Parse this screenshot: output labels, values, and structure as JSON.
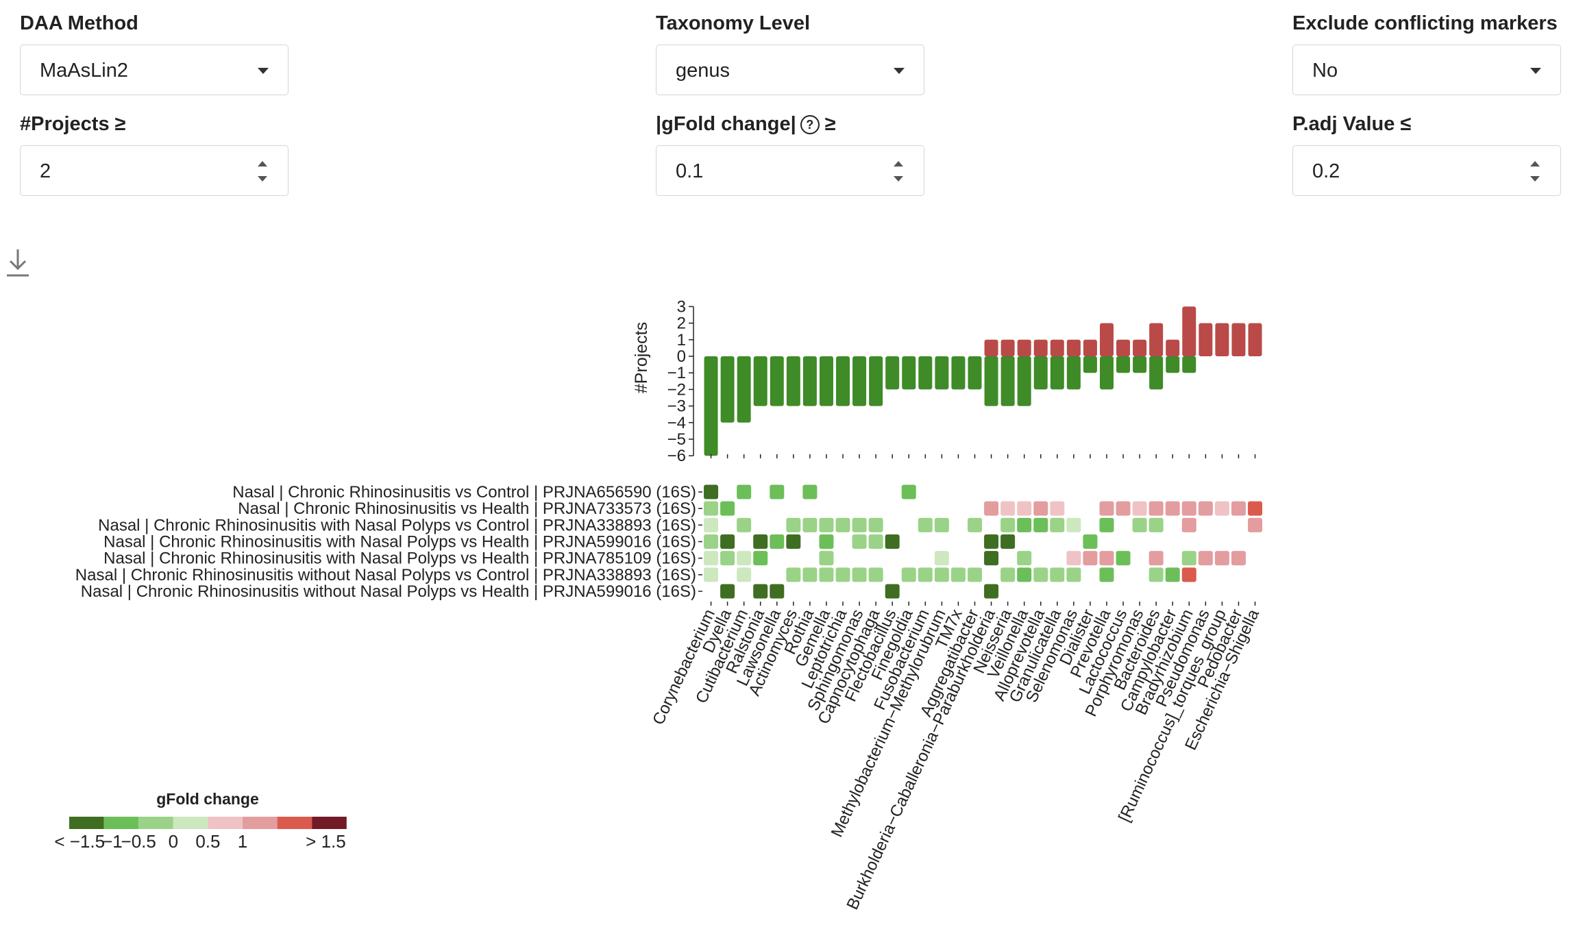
{
  "controls": {
    "daa_method": {
      "label": "DAA Method",
      "value": "MaAsLin2"
    },
    "taxonomy_level": {
      "label": "Taxonomy Level",
      "value": "genus"
    },
    "exclude_conflicting": {
      "label": "Exclude conflicting markers",
      "value": "No"
    },
    "projects_min": {
      "label": "#Projects ≥",
      "value": "2"
    },
    "gfold_min": {
      "label": "|gFold change|",
      "ge": "≥",
      "value": "0.1"
    },
    "padj_max": {
      "label": "P.adj Value ≤",
      "value": "0.2"
    }
  },
  "icons": {
    "download": "download-icon",
    "help": "help-icon",
    "caret": "chevron-down-icon",
    "spinner": "spinner-icon"
  },
  "colors": {
    "bar_positive": "#b94a48",
    "bar_negative": "#3e8b27",
    "legend": [
      "#3f6e23",
      "#6cbf58",
      "#9ad387",
      "#cde8bf",
      "#efc3c5",
      "#e39d9f",
      "#db5a4e",
      "#731a27"
    ]
  },
  "chart_data": {
    "type": "heatmap",
    "bar_ylabel": "#Projects",
    "bar_yticks": [
      "3",
      "2",
      "1",
      "0",
      "−1",
      "−2",
      "−3",
      "−4",
      "−5",
      "−6"
    ],
    "genera": [
      "Corynebacterium",
      "Dyella",
      "Cutibacterium",
      "Ralstonia",
      "Lawsonella",
      "Actinomyces",
      "Rothia",
      "Gemella",
      "Leptotrichia",
      "Sphingomonas",
      "Capnocytophaga",
      "Flectobacillus",
      "Finegoldia",
      "Fusobacterium",
      "Methylobacterium−Methylorubrum",
      "TM7x",
      "Aggregatibacter",
      "Burkholderia−Caballeronia−Paraburkholderia",
      "Neisseria",
      "Veillonella",
      "Alloprevotella",
      "Granulicatella",
      "Selenomonas",
      "Dialister",
      "Prevotella",
      "Lactococcus",
      "Porphyromonas",
      "Bacteroides",
      "Campylobacter",
      "Bradyrhizobium",
      "Pseudomonas",
      "[Ruminococcus]_torques_group",
      "Pedobacter",
      "Escherichia−Shigella"
    ],
    "positive_counts": [
      0,
      0,
      0,
      0,
      0,
      0,
      0,
      0,
      0,
      0,
      0,
      0,
      0,
      0,
      0,
      0,
      0,
      1,
      1,
      1,
      1,
      1,
      1,
      1,
      2,
      1,
      1,
      2,
      1,
      3,
      2,
      2,
      2,
      2
    ],
    "negative_counts": [
      6,
      4,
      4,
      3,
      3,
      3,
      3,
      3,
      3,
      3,
      3,
      2,
      2,
      2,
      2,
      2,
      2,
      3,
      3,
      3,
      2,
      2,
      2,
      1,
      2,
      1,
      1,
      2,
      1,
      1,
      0,
      0,
      0,
      0
    ],
    "rows": [
      "Nasal | Chronic Rhinosinusitis vs Control | PRJNA656590 (16S)",
      "Nasal | Chronic Rhinosinusitis vs Health | PRJNA733573 (16S)",
      "Nasal | Chronic Rhinosinusitis with Nasal Polyps vs Control | PRJNA338893 (16S)",
      "Nasal | Chronic Rhinosinusitis with Nasal Polyps vs Health | PRJNA599016 (16S)",
      "Nasal | Chronic Rhinosinusitis with Nasal Polyps vs Health | PRJNA785109 (16S)",
      "Nasal | Chronic Rhinosinusitis without Nasal Polyps vs Control | PRJNA338893 (16S)",
      "Nasal | Chronic Rhinosinusitis without Nasal Polyps vs Health | PRJNA599016 (16S)"
    ],
    "cell_bins": [
      [
        0,
        null,
        1,
        null,
        1,
        null,
        1,
        null,
        null,
        null,
        null,
        null,
        1,
        null,
        null,
        null,
        null,
        null,
        null,
        null,
        null,
        null,
        null,
        null,
        null,
        null,
        null,
        null,
        null,
        null,
        null,
        null,
        null,
        null
      ],
      [
        2,
        1,
        null,
        null,
        null,
        null,
        null,
        null,
        null,
        null,
        null,
        null,
        null,
        null,
        null,
        null,
        null,
        5,
        4,
        4,
        5,
        4,
        null,
        null,
        5,
        5,
        4,
        5,
        5,
        5,
        5,
        4,
        5,
        6
      ],
      [
        3,
        null,
        2,
        null,
        null,
        2,
        2,
        2,
        2,
        2,
        2,
        null,
        null,
        2,
        2,
        null,
        2,
        null,
        2,
        1,
        1,
        2,
        3,
        null,
        1,
        null,
        2,
        2,
        null,
        5,
        null,
        null,
        null,
        5
      ],
      [
        2,
        0,
        null,
        0,
        1,
        0,
        null,
        1,
        null,
        2,
        2,
        0,
        null,
        null,
        null,
        null,
        null,
        0,
        0,
        null,
        null,
        null,
        null,
        1,
        null,
        null,
        null,
        null,
        null,
        null,
        null,
        null,
        null,
        null
      ],
      [
        3,
        2,
        3,
        1,
        null,
        null,
        null,
        2,
        null,
        null,
        null,
        null,
        null,
        null,
        3,
        null,
        null,
        0,
        null,
        2,
        null,
        null,
        4,
        5,
        5,
        1,
        null,
        5,
        null,
        2,
        5,
        5,
        5,
        null
      ],
      [
        3,
        null,
        3,
        null,
        null,
        2,
        2,
        2,
        2,
        2,
        2,
        null,
        2,
        2,
        2,
        2,
        2,
        null,
        2,
        1,
        2,
        2,
        2,
        null,
        1,
        null,
        null,
        2,
        1,
        6,
        null,
        null,
        null,
        null
      ],
      [
        null,
        0,
        null,
        0,
        0,
        null,
        null,
        null,
        null,
        null,
        null,
        0,
        null,
        null,
        null,
        null,
        null,
        0,
        null,
        null,
        null,
        null,
        null,
        null,
        null,
        null,
        null,
        null,
        null,
        null,
        null,
        null,
        null,
        null
      ]
    ],
    "legend": {
      "title": "gFold change",
      "tick_labels": [
        "< −1.5",
        "−1",
        "−0.5",
        "0",
        "0.5",
        "1",
        "> 1.5"
      ]
    }
  }
}
